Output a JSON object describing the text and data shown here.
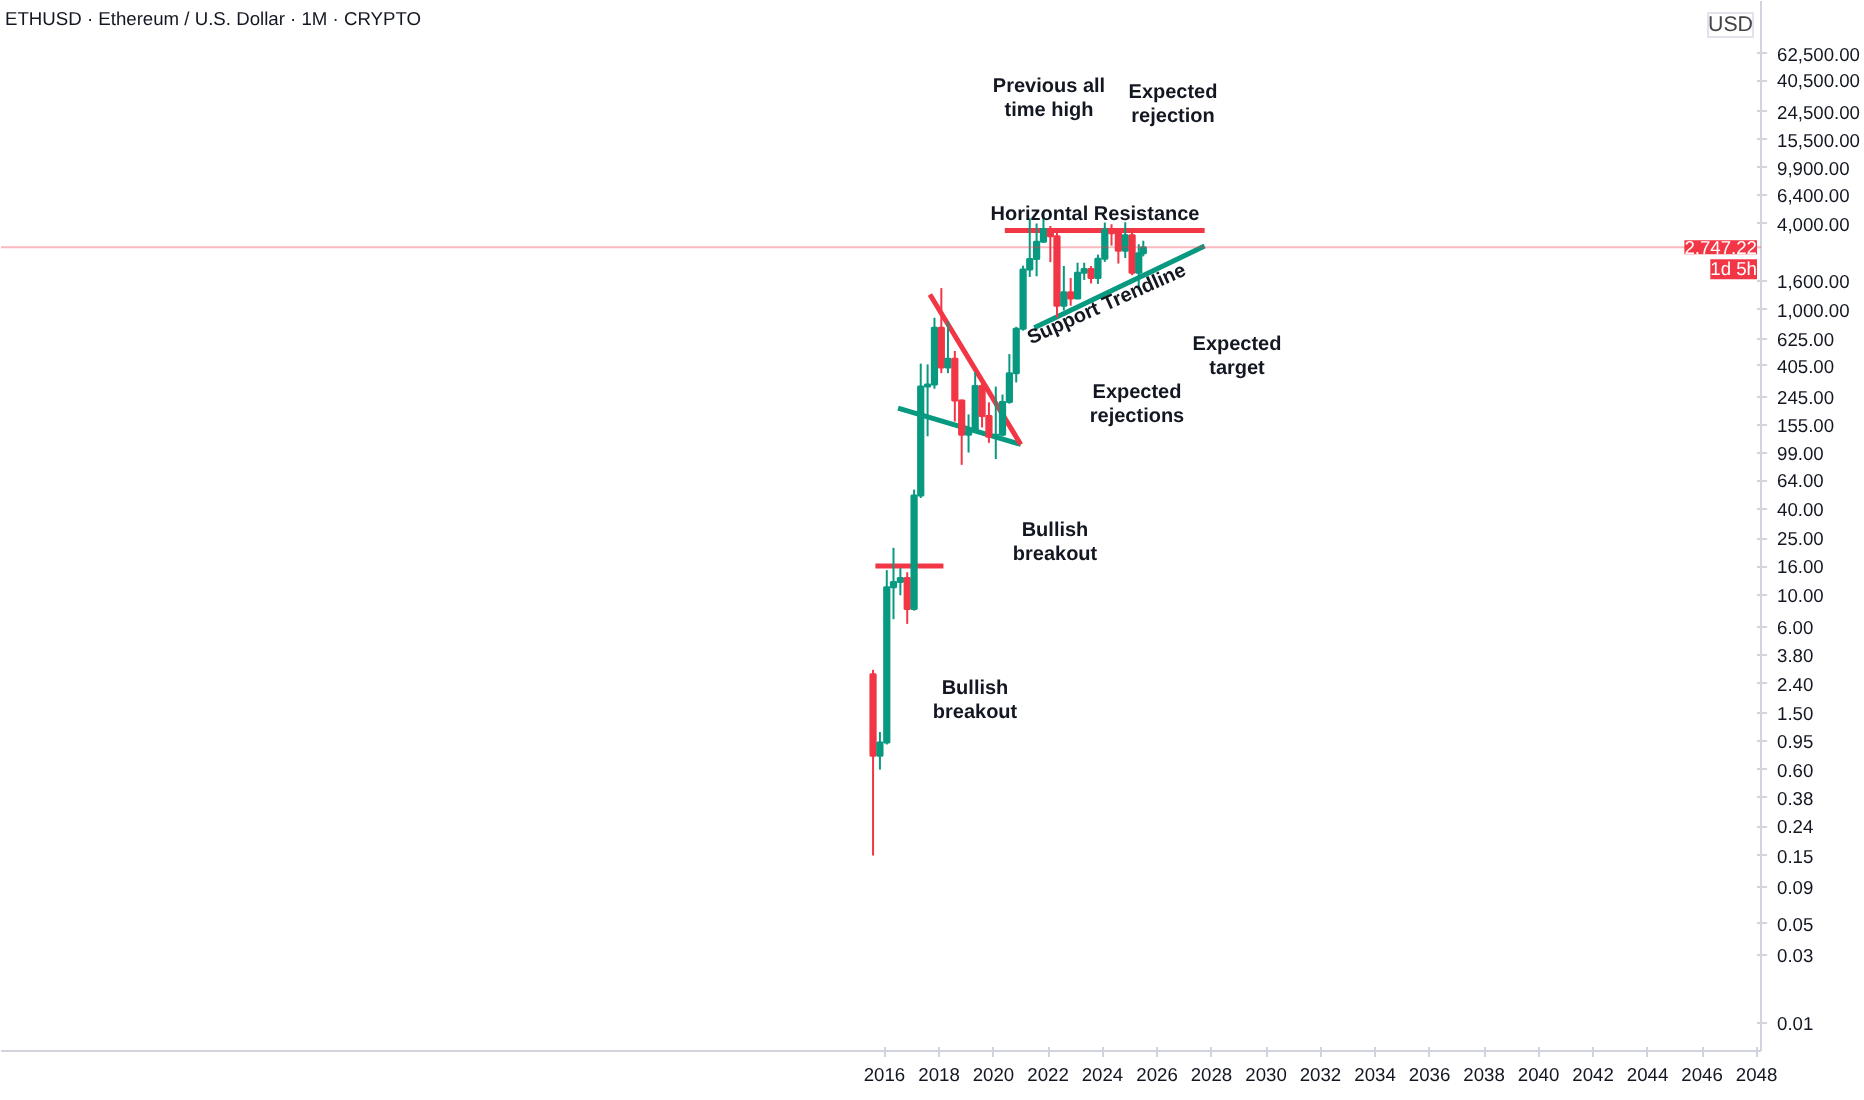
{
  "chart_data": {
    "type": "candlestick",
    "title": "ETHUSD · Ethereum / U.S. Dollar · 1M · CRYPTO",
    "ylabel": "USD",
    "x": [
      "2015-08",
      "2015-11",
      "2016-02",
      "2016-05",
      "2016-08",
      "2016-11",
      "2017-02",
      "2017-05",
      "2017-08",
      "2017-11",
      "2018-02",
      "2018-05",
      "2018-08",
      "2018-11",
      "2019-02",
      "2019-05",
      "2019-08",
      "2019-11",
      "2020-02",
      "2020-05",
      "2020-08",
      "2020-11",
      "2021-02",
      "2021-05",
      "2021-08",
      "2021-11",
      "2022-02",
      "2022-05",
      "2022-08",
      "2022-11",
      "2023-02",
      "2023-05",
      "2023-08",
      "2023-11",
      "2024-02",
      "2024-05",
      "2024-08",
      "2024-11",
      "2025-02",
      "2025-05",
      "2025-07"
    ],
    "ohlc": [
      [
        2.8,
        3.0,
        0.15,
        0.75
      ],
      [
        0.75,
        1.1,
        0.6,
        0.93
      ],
      [
        0.93,
        15,
        0.9,
        11.4
      ],
      [
        11.4,
        21.5,
        6.8,
        12.4
      ],
      [
        12.4,
        15.5,
        10,
        13.2
      ],
      [
        13.2,
        14.5,
        6.3,
        8
      ],
      [
        8,
        55,
        7.8,
        50
      ],
      [
        50,
        420,
        48,
        290
      ],
      [
        290,
        415,
        130,
        300
      ],
      [
        300,
        880,
        280,
        750
      ],
      [
        750,
        1420,
        360,
        395
      ],
      [
        395,
        830,
        360,
        455
      ],
      [
        455,
        515,
        165,
        232
      ],
      [
        232,
        235,
        82,
        133
      ],
      [
        133,
        185,
        100,
        141
      ],
      [
        141,
        365,
        140,
        293
      ],
      [
        293,
        320,
        150,
        180
      ],
      [
        180,
        225,
        117,
        129
      ],
      [
        129,
        290,
        90,
        133
      ],
      [
        133,
        255,
        130,
        226
      ],
      [
        226,
        490,
        220,
        360
      ],
      [
        360,
        760,
        310,
        737
      ],
      [
        737,
        2040,
        715,
        1920
      ],
      [
        1920,
        4380,
        1700,
        2270
      ],
      [
        2270,
        4030,
        1720,
        3000
      ],
      [
        3000,
        4870,
        2950,
        3680
      ],
      [
        3680,
        3870,
        2160,
        3280
      ],
      [
        3280,
        3580,
        880,
        1070
      ],
      [
        1070,
        2030,
        990,
        1330
      ],
      [
        1330,
        1670,
        1070,
        1200
      ],
      [
        1200,
        2140,
        1190,
        1820
      ],
      [
        1820,
        2140,
        1620,
        1930
      ],
      [
        1930,
        2030,
        1530,
        1670
      ],
      [
        1670,
        2440,
        1520,
        2280
      ],
      [
        2280,
        4090,
        2170,
        3650
      ],
      [
        3650,
        3980,
        2820,
        3440
      ],
      [
        3440,
        3560,
        2110,
        2600
      ],
      [
        2600,
        4110,
        2310,
        3330
      ],
      [
        3330,
        3740,
        1750,
        1820
      ],
      [
        1820,
        2880,
        1380,
        2490
      ],
      [
        2490,
        3050,
        2370,
        2747.22
      ]
    ],
    "colors": [
      "#f23645",
      "#089981",
      "#089981",
      "#089981",
      "#089981",
      "#f23645",
      "#089981",
      "#089981",
      "#089981",
      "#089981",
      "#f23645",
      "#089981",
      "#f23645",
      "#f23645",
      "#089981",
      "#089981",
      "#f23645",
      "#f23645",
      "#089981",
      "#089981",
      "#089981",
      "#089981",
      "#089981",
      "#089981",
      "#089981",
      "#089981",
      "#f23645",
      "#f23645",
      "#089981",
      "#f23645",
      "#089981",
      "#089981",
      "#f23645",
      "#089981",
      "#089981",
      "#f23645",
      "#f23645",
      "#089981",
      "#f23645",
      "#089981",
      "#089981"
    ],
    "series": [
      {
        "type": "line",
        "x": [
          "2015-09",
          "2018-03"
        ],
        "values": [
          16,
          16
        ],
        "color": "#f23645"
      },
      {
        "type": "line",
        "x": [
          "2016-07",
          "2021-01"
        ],
        "values": [
          205,
          114
        ],
        "color": "#089981"
      },
      {
        "type": "line",
        "x": [
          "2017-09",
          "2021-01"
        ],
        "values": [
          1280,
          114
        ],
        "color": "#f23645"
      },
      {
        "type": "line",
        "x": [
          "2020-06",
          "2027-10"
        ],
        "values": [
          3600,
          3600
        ],
        "color": "#f23645"
      },
      {
        "type": "line",
        "x": [
          "2021-07",
          "2027-10"
        ],
        "values": [
          750,
          2800
        ],
        "color": "#089981"
      }
    ],
    "ref_lines": [
      {
        "axis": "y",
        "value": 2747.22,
        "label": "2,747.22",
        "color": "#f23645"
      }
    ],
    "annotations": [
      "Previous all",
      "time high",
      "Expected",
      "rejection",
      "Horizontal Resistance",
      "Support Trendline",
      "Expected",
      "rejections",
      "Expected",
      "target",
      "Bullish",
      "breakout",
      "Bullish",
      "breakout",
      "1d 5h"
    ],
    "xlim": [
      "1983-08",
      "2048-03"
    ],
    "ylim": [
      0.0064,
      146000
    ],
    "log": true,
    "xticks": [
      "2016",
      "2018",
      "2020",
      "2022",
      "2024",
      "2026",
      "2028",
      "2030",
      "2032",
      "2034",
      "2036",
      "2038",
      "2040",
      "2042",
      "2044",
      "2046",
      "2048"
    ],
    "yticks": [
      {
        "value": 62500,
        "label": "62,500.00"
      },
      {
        "value": 40500,
        "label": "40,500.00"
      },
      {
        "value": 24500,
        "label": "24,500.00"
      },
      {
        "value": 15500,
        "label": "15,500.00"
      },
      {
        "value": 9900,
        "label": "9,900.00"
      },
      {
        "value": 6400,
        "label": "6,400.00"
      },
      {
        "value": 4000,
        "label": "4,000.00"
      },
      {
        "value": 1600,
        "label": "1,600.00"
      },
      {
        "value": 1000,
        "label": "1,000.00"
      },
      {
        "value": 625,
        "label": "625.00"
      },
      {
        "value": 405,
        "label": "405.00"
      },
      {
        "value": 245,
        "label": "245.00"
      },
      {
        "value": 155,
        "label": "155.00"
      },
      {
        "value": 99,
        "label": "99.00"
      },
      {
        "value": 64,
        "label": "64.00"
      },
      {
        "value": 40,
        "label": "40.00"
      },
      {
        "value": 25,
        "label": "25.00"
      },
      {
        "value": 16,
        "label": "16.00"
      },
      {
        "value": 10,
        "label": "10.00"
      },
      {
        "value": 6,
        "label": "6.00"
      },
      {
        "value": 3.8,
        "label": "3.80"
      },
      {
        "value": 2.4,
        "label": "2.40"
      },
      {
        "value": 1.5,
        "label": "1.50"
      },
      {
        "value": 0.95,
        "label": "0.95"
      },
      {
        "value": 0.6,
        "label": "0.60"
      },
      {
        "value": 0.38,
        "label": "0.38"
      },
      {
        "value": 0.24,
        "label": "0.24"
      },
      {
        "value": 0.15,
        "label": "0.15"
      },
      {
        "value": 0.09,
        "label": "0.09"
      },
      {
        "value": 0.05,
        "label": "0.05"
      },
      {
        "value": 0.03,
        "label": "0.03"
      },
      {
        "value": 0.01,
        "label": "0.01"
      }
    ],
    "grid": false
  }
}
